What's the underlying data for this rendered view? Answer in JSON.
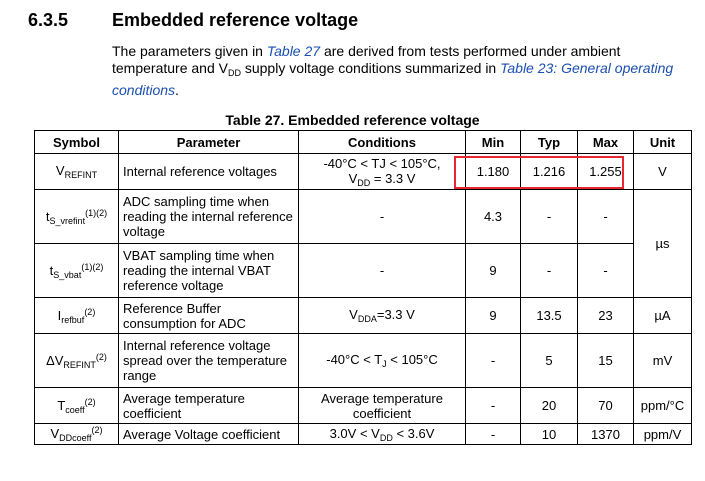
{
  "section": {
    "number": "6.3.5",
    "title": "Embedded reference voltage"
  },
  "intro": {
    "p1": "The parameters given in ",
    "link1": "Table 27",
    "p2": " are derived from tests performed under ambient temperature and V",
    "p2_sub": "DD",
    "p3": " supply voltage conditions summarized in ",
    "link2": "Table 23: General operating conditions",
    "p4": "."
  },
  "table": {
    "caption": "Table 27. Embedded reference voltage",
    "headers": {
      "symbol": "Symbol",
      "parameter": "Parameter",
      "conditions": "Conditions",
      "min": "Min",
      "typ": "Typ",
      "max": "Max",
      "unit": "Unit"
    },
    "rows": [
      {
        "sym": "V",
        "sym_sub": "REFINT",
        "sym_sup": "",
        "param": "Internal reference voltages",
        "cond_l1": "-40°C < TJ < 105°C,",
        "cond_pre": "V",
        "cond_sub": "DD",
        "cond_post": " = 3.3 V",
        "min": "1.180",
        "typ": "1.216",
        "max": "1.255",
        "unit": "V"
      },
      {
        "sym": "t",
        "sym_sub": "S_vrefint",
        "sym_sup": "(1)(2)",
        "param": "ADC sampling time when reading the internal reference voltage",
        "cond": "-",
        "min": "4.3",
        "typ": "-",
        "max": "-",
        "unit": "µs"
      },
      {
        "sym": "t",
        "sym_sub": "S_vbat",
        "sym_sup": "(1)(2)",
        "param": "VBAT sampling time when reading the internal VBAT reference voltage",
        "cond": "-",
        "min": "9",
        "typ": "-",
        "max": "-"
      },
      {
        "sym": "I",
        "sym_sub": "refbuf",
        "sym_sup": "(2)",
        "param": "Reference Buffer consumption for ADC",
        "cond_pre": "V",
        "cond_sub": "DDA",
        "cond_post": "=3.3 V",
        "min": "9",
        "typ": "13.5",
        "max": "23",
        "unit": "µA"
      },
      {
        "sym": "ΔV",
        "sym_sub": "REFINT",
        "sym_sup": "(2)",
        "param": "Internal reference voltage spread over the temperature range",
        "cond_pre": "-40°C < T",
        "cond_sub": "J",
        "cond_post": " < 105°C",
        "min": "-",
        "typ": "5",
        "max": "15",
        "unit": "mV"
      },
      {
        "sym": "T",
        "sym_sub": "coeff",
        "sym_sup": "(2)",
        "param": "Average temperature coefficient",
        "cond": "Average temperature coefficient",
        "min": "-",
        "typ": "20",
        "max": "70",
        "unit": "ppm/°C"
      },
      {
        "sym": "V",
        "sym_sub": "DDcoeff",
        "sym_sup": "(2)",
        "param": "Average Voltage coefficient",
        "cond_pre": "3.0V < V",
        "cond_sub": "DD",
        "cond_post": " < 3.6V",
        "min": "-",
        "typ": "10",
        "max": "1370",
        "unit": "ppm/V"
      }
    ]
  },
  "highlight_color": "#e8262f",
  "link_color": "#1a4fb0"
}
